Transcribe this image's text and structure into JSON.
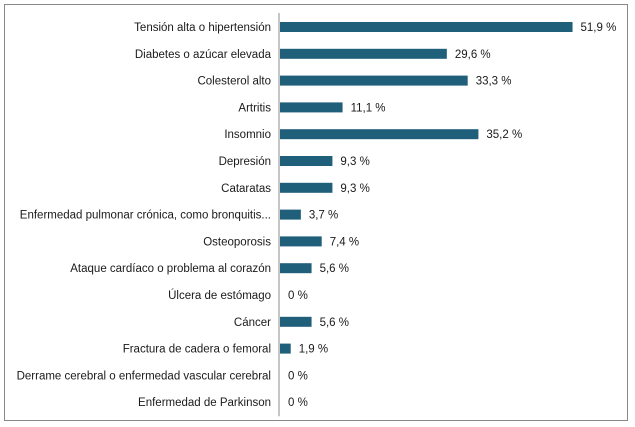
{
  "chart_data": {
    "type": "bar",
    "orientation": "horizontal",
    "categories": [
      "Tensión alta o hipertensión",
      "Diabetes o azúcar elevada",
      "Colesterol alto",
      "Artritis",
      "Insomnio",
      "Depresión",
      "Cataratas",
      "Enfermedad pulmonar crónica, como bronquitis...",
      "Osteoporosis",
      "Ataque cardíaco o problema al corazón",
      "Úlcera de estómago",
      "Cáncer",
      "Fractura de cadera o femoral",
      "Derrame cerebral o enfermedad vascular cerebral",
      "Enfermedad de Parkinson"
    ],
    "values": [
      51.9,
      29.6,
      33.3,
      11.1,
      35.2,
      9.3,
      9.3,
      3.7,
      7.4,
      5.6,
      0,
      5.6,
      1.9,
      0,
      0
    ],
    "value_labels": [
      "51,9 %",
      "29,6 %",
      "33,3 %",
      "11,1 %",
      "35,2 %",
      "9,3 %",
      "9,3 %",
      "3,7 %",
      "7,4 %",
      "5,6 %",
      "0 %",
      "5,6 %",
      "1,9 %",
      "0 %",
      "0 %"
    ],
    "title": "",
    "xlabel": "",
    "ylabel": "",
    "xlim": [
      0,
      55
    ],
    "grid": false,
    "legend": "none",
    "bar_color": "#1f5f7a",
    "axis_color": "#8c8c8c"
  }
}
